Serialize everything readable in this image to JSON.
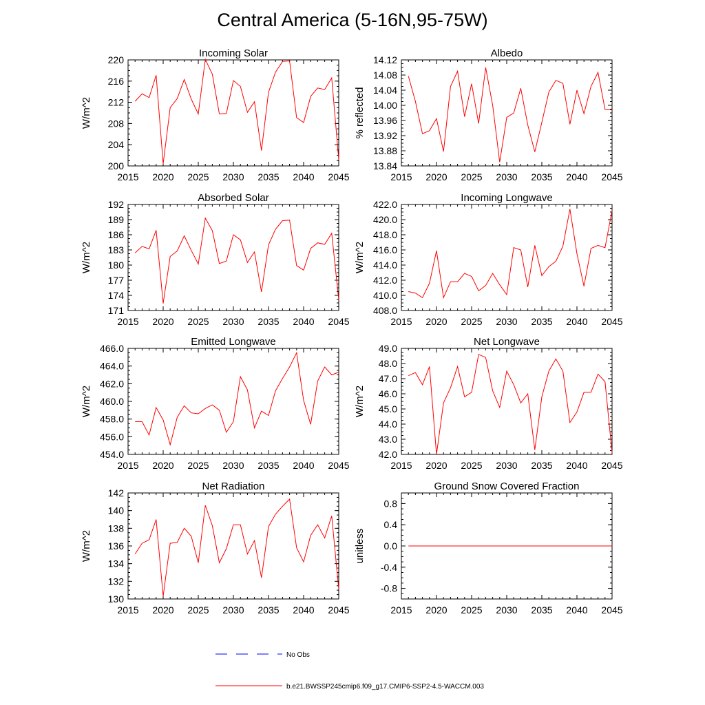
{
  "title": "Central America (5-16N,95-75W)",
  "colors": {
    "model": "#ff0000",
    "obs": "#0000ff",
    "axis": "#000000"
  },
  "legend": {
    "obs_label": "No Obs",
    "model_label": "b.e21.BWSSP245cmip6.f09_g17.CMIP6-SSP2-4.5-WACCM.003"
  },
  "chart_data": [
    {
      "type": "line",
      "title": "Incoming Solar",
      "ylabel": "W/m^2",
      "xlim": [
        2015,
        2045
      ],
      "xticks": [
        2015,
        2020,
        2025,
        2030,
        2035,
        2040,
        2045
      ],
      "ylim": [
        200,
        220
      ],
      "yticks": [
        "200",
        "204",
        "208",
        "212",
        "216",
        "220"
      ],
      "x": [
        2016,
        2017,
        2018,
        2019,
        2020,
        2021,
        2022,
        2023,
        2024,
        2025,
        2026,
        2027,
        2028,
        2029,
        2030,
        2031,
        2032,
        2033,
        2034,
        2035,
        2036,
        2037,
        2038,
        2039,
        2040,
        2041,
        2042,
        2043,
        2044,
        2045
      ],
      "values": [
        212.2,
        213.6,
        212.9,
        217.1,
        200.4,
        211.0,
        212.7,
        216.3,
        212.6,
        209.8,
        220.1,
        217.3,
        209.8,
        209.9,
        216.1,
        215.0,
        210.1,
        212.1,
        202.9,
        213.9,
        217.7,
        219.7,
        219.8,
        209.1,
        208.2,
        213.1,
        214.7,
        214.4,
        216.6,
        201.2
      ]
    },
    {
      "type": "line",
      "title": "Albedo",
      "ylabel": "% reflected",
      "xlim": [
        2015,
        2045
      ],
      "xticks": [
        2015,
        2020,
        2025,
        2030,
        2035,
        2040,
        2045
      ],
      "ylim": [
        13.84,
        14.12
      ],
      "yticks": [
        "13.84",
        "13.88",
        "13.92",
        "13.96",
        "14.00",
        "14.04",
        "14.08",
        "14.12"
      ],
      "x": [
        2016,
        2017,
        2018,
        2019,
        2020,
        2021,
        2022,
        2023,
        2024,
        2025,
        2026,
        2027,
        2028,
        2029,
        2030,
        2031,
        2032,
        2033,
        2034,
        2035,
        2036,
        2037,
        2038,
        2039,
        2040,
        2041,
        2042,
        2043,
        2044,
        2045
      ],
      "values": [
        14.077,
        14.01,
        13.925,
        13.933,
        13.965,
        13.878,
        14.05,
        14.09,
        13.97,
        14.057,
        13.952,
        14.1,
        14.0,
        13.85,
        13.968,
        13.98,
        14.045,
        13.948,
        13.877,
        13.955,
        14.035,
        14.066,
        14.058,
        13.95,
        14.04,
        13.978,
        14.05,
        14.087,
        13.989,
        13.988
      ]
    },
    {
      "type": "line",
      "title": "Absorbed Solar",
      "ylabel": "W/m^2",
      "xlim": [
        2015,
        2045
      ],
      "xticks": [
        2015,
        2020,
        2025,
        2030,
        2035,
        2040,
        2045
      ],
      "ylim": [
        171,
        192
      ],
      "yticks": [
        "171",
        "174",
        "177",
        "180",
        "183",
        "186",
        "189",
        "192"
      ],
      "x": [
        2016,
        2017,
        2018,
        2019,
        2020,
        2021,
        2022,
        2023,
        2024,
        2025,
        2026,
        2027,
        2028,
        2029,
        2030,
        2031,
        2032,
        2033,
        2034,
        2035,
        2036,
        2037,
        2038,
        2039,
        2040,
        2041,
        2042,
        2043,
        2044,
        2045
      ],
      "values": [
        182.4,
        183.7,
        183.2,
        186.9,
        172.4,
        181.7,
        182.8,
        185.8,
        182.9,
        180.2,
        189.3,
        186.8,
        180.3,
        180.8,
        186.0,
        185.0,
        180.5,
        182.6,
        174.7,
        184.0,
        187.1,
        188.8,
        188.9,
        179.9,
        179.0,
        183.3,
        184.4,
        184.1,
        186.3,
        173.1
      ]
    },
    {
      "type": "line",
      "title": "Incoming Longwave",
      "ylabel": "W/m^2",
      "xlim": [
        2015,
        2045
      ],
      "xticks": [
        2015,
        2020,
        2025,
        2030,
        2035,
        2040,
        2045
      ],
      "ylim": [
        408,
        422
      ],
      "yticks": [
        "408.0",
        "410.0",
        "412.0",
        "414.0",
        "416.0",
        "418.0",
        "420.0",
        "422.0"
      ],
      "x": [
        2016,
        2017,
        2018,
        2019,
        2020,
        2021,
        2022,
        2023,
        2024,
        2025,
        2026,
        2027,
        2028,
        2029,
        2030,
        2031,
        2032,
        2033,
        2034,
        2035,
        2036,
        2037,
        2038,
        2039,
        2040,
        2041,
        2042,
        2043,
        2044,
        2045
      ],
      "values": [
        410.5,
        410.3,
        409.7,
        411.6,
        415.9,
        409.7,
        411.8,
        411.8,
        412.9,
        412.5,
        410.6,
        411.3,
        412.9,
        411.4,
        410.1,
        416.3,
        416.0,
        411.1,
        416.6,
        412.6,
        413.8,
        414.5,
        416.5,
        421.4,
        415.5,
        411.2,
        416.2,
        416.6,
        416.3,
        421.2
      ]
    },
    {
      "type": "line",
      "title": "Emitted Longwave",
      "ylabel": "W/m^2",
      "xlim": [
        2015,
        2045
      ],
      "xticks": [
        2015,
        2020,
        2025,
        2030,
        2035,
        2040,
        2045
      ],
      "ylim": [
        454,
        466
      ],
      "yticks": [
        "454.0",
        "456.0",
        "458.0",
        "460.0",
        "462.0",
        "464.0",
        "466.0"
      ],
      "x": [
        2016,
        2017,
        2018,
        2019,
        2020,
        2021,
        2022,
        2023,
        2024,
        2025,
        2026,
        2027,
        2028,
        2029,
        2030,
        2031,
        2032,
        2033,
        2034,
        2035,
        2036,
        2037,
        2038,
        2039,
        2040,
        2041,
        2042,
        2043,
        2044,
        2045
      ],
      "values": [
        457.7,
        457.7,
        456.2,
        459.3,
        457.9,
        455.1,
        458.2,
        459.5,
        458.7,
        458.6,
        459.2,
        459.6,
        459.0,
        456.5,
        457.7,
        462.8,
        461.3,
        457.0,
        458.9,
        458.4,
        461.2,
        462.6,
        463.9,
        465.5,
        460.1,
        457.4,
        462.3,
        463.9,
        463.0,
        463.3
      ]
    },
    {
      "type": "line",
      "title": "Net Longwave",
      "ylabel": "W/m^2",
      "xlim": [
        2015,
        2045
      ],
      "xticks": [
        2015,
        2020,
        2025,
        2030,
        2035,
        2040,
        2045
      ],
      "ylim": [
        42,
        49
      ],
      "yticks": [
        "42.0",
        "43.0",
        "44.0",
        "45.0",
        "46.0",
        "47.0",
        "48.0",
        "49.0"
      ],
      "x": [
        2016,
        2017,
        2018,
        2019,
        2020,
        2021,
        2022,
        2023,
        2024,
        2025,
        2026,
        2027,
        2028,
        2029,
        2030,
        2031,
        2032,
        2033,
        2034,
        2035,
        2036,
        2037,
        2038,
        2039,
        2040,
        2041,
        2042,
        2043,
        2044,
        2045
      ],
      "values": [
        47.2,
        47.4,
        46.6,
        47.8,
        42.0,
        45.4,
        46.4,
        47.8,
        45.8,
        46.1,
        48.6,
        48.4,
        46.2,
        45.1,
        47.5,
        46.6,
        45.4,
        46.0,
        42.3,
        45.8,
        47.5,
        48.3,
        47.5,
        44.1,
        44.8,
        46.1,
        46.1,
        47.3,
        46.8,
        42.1
      ]
    },
    {
      "type": "line",
      "title": "Net Radiation",
      "ylabel": "W/m^2",
      "xlim": [
        2015,
        2045
      ],
      "xticks": [
        2015,
        2020,
        2025,
        2030,
        2035,
        2040,
        2045
      ],
      "ylim": [
        130,
        142
      ],
      "yticks": [
        "130",
        "132",
        "134",
        "136",
        "138",
        "140",
        "142"
      ],
      "x": [
        2016,
        2017,
        2018,
        2019,
        2020,
        2021,
        2022,
        2023,
        2024,
        2025,
        2026,
        2027,
        2028,
        2029,
        2030,
        2031,
        2032,
        2033,
        2034,
        2035,
        2036,
        2037,
        2038,
        2039,
        2040,
        2041,
        2042,
        2043,
        2044,
        2045
      ],
      "values": [
        135.1,
        136.3,
        136.7,
        139.0,
        130.3,
        136.3,
        136.4,
        138.0,
        137.1,
        134.1,
        140.6,
        138.3,
        134.1,
        135.7,
        138.4,
        138.4,
        135.1,
        136.6,
        132.4,
        138.2,
        139.6,
        140.5,
        141.3,
        135.8,
        134.2,
        137.2,
        138.4,
        136.9,
        139.4,
        131.1
      ]
    },
    {
      "type": "line",
      "title": "Ground Snow Covered Fraction",
      "ylabel": "unitless",
      "xlim": [
        2015,
        2045
      ],
      "xticks": [
        2015,
        2020,
        2025,
        2030,
        2035,
        2040,
        2045
      ],
      "ylim": [
        -1.0,
        1.0
      ],
      "yticks": [
        "-0.8",
        "-0.4",
        "0.0",
        "0.4",
        "0.8"
      ],
      "x": [
        2016,
        2017,
        2018,
        2019,
        2020,
        2021,
        2022,
        2023,
        2024,
        2025,
        2026,
        2027,
        2028,
        2029,
        2030,
        2031,
        2032,
        2033,
        2034,
        2035,
        2036,
        2037,
        2038,
        2039,
        2040,
        2041,
        2042,
        2043,
        2044,
        2045
      ],
      "values": [
        0,
        0,
        0,
        0,
        0,
        0,
        0,
        0,
        0,
        0,
        0,
        0,
        0,
        0,
        0,
        0,
        0,
        0,
        0,
        0,
        0,
        0,
        0,
        0,
        0,
        0,
        0,
        0,
        0,
        0
      ]
    }
  ]
}
